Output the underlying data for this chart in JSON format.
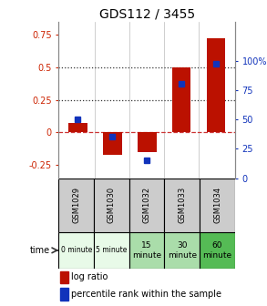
{
  "title": "GDS112 / 3455",
  "samples": [
    "GSM1029",
    "GSM1030",
    "GSM1032",
    "GSM1033",
    "GSM1034"
  ],
  "time_labels": [
    "0 minute",
    "5 minute",
    "15\nminute",
    "30\nminute",
    "60\nminute"
  ],
  "time_colors": [
    "#e8fae8",
    "#e8fae8",
    "#aaddaa",
    "#aaddaa",
    "#55bb55"
  ],
  "log_ratio": [
    0.07,
    -0.17,
    -0.15,
    0.5,
    0.72
  ],
  "percentile": [
    50,
    35,
    15,
    80,
    97
  ],
  "bar_color": "#bb1100",
  "dot_color": "#1133bb",
  "ylim_left": [
    -0.35,
    0.85
  ],
  "ylim_right": [
    0,
    133.33
  ],
  "yticks_left": [
    -0.25,
    0,
    0.25,
    0.5,
    0.75
  ],
  "yticks_right": [
    0,
    25,
    50,
    75,
    100
  ],
  "right_tick_labels": [
    "0",
    "25",
    "50",
    "75",
    "100%"
  ],
  "hline_y": [
    0.0,
    0.25,
    0.5
  ],
  "hline_styles": [
    "--",
    ":",
    ":"
  ],
  "hline_colors": [
    "#cc3333",
    "#333333",
    "#333333"
  ],
  "gsm_bg": "#cccccc",
  "plot_bg": "#ffffff"
}
